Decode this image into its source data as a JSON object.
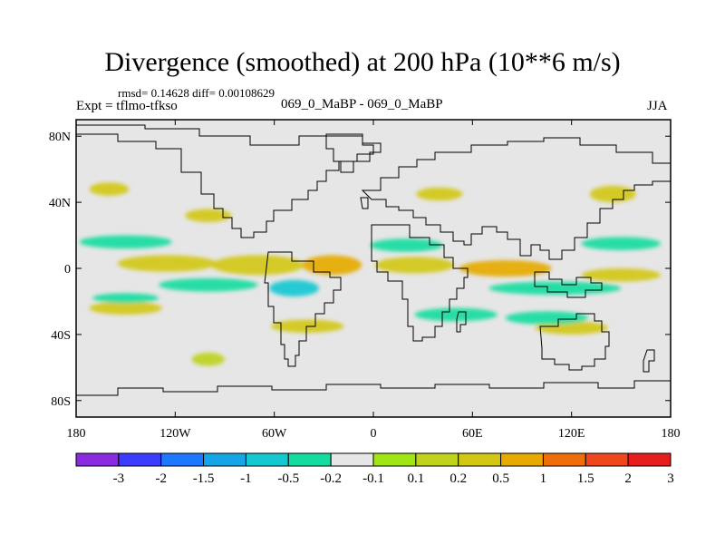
{
  "title": "Divergence (smoothed) at 200 hPa (10**6 m/s)",
  "stats_line": "rmsd= 0.14628 diff= 0.00108629",
  "experiment_line": "Expt = tflmo-tfkso",
  "runs_line": "069_0_MaBP - 069_0_MaBP",
  "season": "JJA",
  "map": {
    "background": "#e6e6e6",
    "lat_range": [
      -90,
      90
    ],
    "lon_range": [
      -180,
      180
    ],
    "lat_ticks": [
      {
        "value": 80,
        "label": "80N"
      },
      {
        "value": 40,
        "label": "40N"
      },
      {
        "value": 0,
        "label": "0"
      },
      {
        "value": -40,
        "label": "40S"
      },
      {
        "value": -80,
        "label": "80S"
      }
    ],
    "lon_ticks": [
      {
        "value": -180,
        "label": "180"
      },
      {
        "value": -120,
        "label": "120W"
      },
      {
        "value": -60,
        "label": "60W"
      },
      {
        "value": 0,
        "label": "0"
      },
      {
        "value": 60,
        "label": "60E"
      },
      {
        "value": 120,
        "label": "120E"
      },
      {
        "value": 180,
        "label": "180"
      }
    ]
  },
  "colorbar": {
    "colors": [
      "#8a2be2",
      "#3c3cff",
      "#1e78ff",
      "#14a5e6",
      "#14c8d2",
      "#14dca0",
      "#e6e6e6",
      "#a0e614",
      "#bed21e",
      "#d2c814",
      "#e6aa00",
      "#f06e0a",
      "#f0461e",
      "#e61e1e"
    ],
    "labels": [
      "-3",
      "-2",
      "-1.5",
      "-1",
      "-0.5",
      "-0.2",
      "-0.1",
      "0.1",
      "0.2",
      "0.5",
      "1",
      "1.5",
      "2",
      "3"
    ]
  },
  "chart_data": {
    "type": "heatmap",
    "variable": "Divergence (smoothed) at 200 hPa",
    "units": "10**6 m/s",
    "levels": [
      -3,
      -2,
      -1.5,
      -1,
      -0.5,
      -0.2,
      -0.1,
      0.1,
      0.2,
      0.5,
      1,
      1.5,
      2,
      3
    ],
    "features": [
      {
        "name": "tropical-positive-band-1",
        "lon": -125,
        "lat": 3,
        "value": 0.3,
        "rlon": 30,
        "rlat": 5
      },
      {
        "name": "tropical-positive-band-2",
        "lon": -70,
        "lat": 2,
        "value": 0.4,
        "rlon": 28,
        "rlat": 6
      },
      {
        "name": "tropical-positive-core-1",
        "lon": -25,
        "lat": 2,
        "value": 0.8,
        "rlon": 18,
        "rlat": 6
      },
      {
        "name": "tropical-positive-band-3",
        "lon": 25,
        "lat": 2,
        "value": 0.4,
        "rlon": 24,
        "rlat": 5
      },
      {
        "name": "tropical-positive-core-2",
        "lon": 80,
        "lat": 0,
        "value": 0.6,
        "rlon": 28,
        "rlat": 5
      },
      {
        "name": "tropical-positive-band-4",
        "lon": 150,
        "lat": -4,
        "value": 0.4,
        "rlon": 24,
        "rlat": 4
      },
      {
        "name": "southern-positive-band-1",
        "lon": -150,
        "lat": -24,
        "value": 0.3,
        "rlon": 22,
        "rlat": 4
      },
      {
        "name": "southern-positive-band-2",
        "lon": -40,
        "lat": -35,
        "value": 0.25,
        "rlon": 22,
        "rlat": 4
      },
      {
        "name": "southern-positive-band-3",
        "lon": 120,
        "lat": -36,
        "value": 0.3,
        "rlon": 22,
        "rlat": 4
      },
      {
        "name": "northern-positive-1",
        "lon": -160,
        "lat": 48,
        "value": 0.2,
        "rlon": 12,
        "rlat": 4
      },
      {
        "name": "northern-positive-2",
        "lon": -100,
        "lat": 32,
        "value": 0.2,
        "rlon": 14,
        "rlat": 4
      },
      {
        "name": "northern-positive-3",
        "lon": 40,
        "lat": 45,
        "value": 0.2,
        "rlon": 14,
        "rlat": 4
      },
      {
        "name": "northern-positive-4",
        "lon": 145,
        "lat": 45,
        "value": 0.2,
        "rlon": 14,
        "rlat": 5
      },
      {
        "name": "southern-positive-4",
        "lon": -100,
        "lat": -55,
        "value": 0.15,
        "rlon": 10,
        "rlat": 4
      },
      {
        "name": "tropical-negative-band-1",
        "lon": -150,
        "lat": 16,
        "value": -0.3,
        "rlon": 28,
        "rlat": 4
      },
      {
        "name": "tropical-negative-band-2",
        "lon": -100,
        "lat": -10,
        "value": -0.3,
        "rlon": 30,
        "rlat": 4
      },
      {
        "name": "tropical-negative-core",
        "lon": -48,
        "lat": -12,
        "value": -0.6,
        "rlon": 15,
        "rlat": 5
      },
      {
        "name": "tropical-negative-band-3",
        "lon": 20,
        "lat": 14,
        "value": -0.3,
        "rlon": 22,
        "rlat": 4
      },
      {
        "name": "tropical-negative-band-4",
        "lon": 110,
        "lat": -12,
        "value": -0.3,
        "rlon": 40,
        "rlat": 4
      },
      {
        "name": "tropical-negative-band-5",
        "lon": 150,
        "lat": 15,
        "value": -0.3,
        "rlon": 24,
        "rlat": 4
      },
      {
        "name": "southern-negative-band-1",
        "lon": -150,
        "lat": -18,
        "value": -0.25,
        "rlon": 20,
        "rlat": 3
      },
      {
        "name": "southern-negative-band-2",
        "lon": 50,
        "lat": -28,
        "value": -0.25,
        "rlon": 25,
        "rlat": 4
      },
      {
        "name": "southern-negative-band-3",
        "lon": 105,
        "lat": -30,
        "value": -0.3,
        "rlon": 25,
        "rlat": 4
      },
      {
        "name": "southern-negative-4",
        "lon": 125,
        "lat": -58,
        "value": -0.2,
        "rlon": 10,
        "rlat": 3
      },
      {
        "name": "northern-negative-1",
        "lon": -140,
        "lat": 30,
        "value": -0.2,
        "rlon": 12,
        "rlat": 4
      },
      {
        "name": "northern-negative-2",
        "lon": 90,
        "lat": 64,
        "value": -0.2,
        "rlon": 10,
        "rlat": 4
      }
    ]
  }
}
